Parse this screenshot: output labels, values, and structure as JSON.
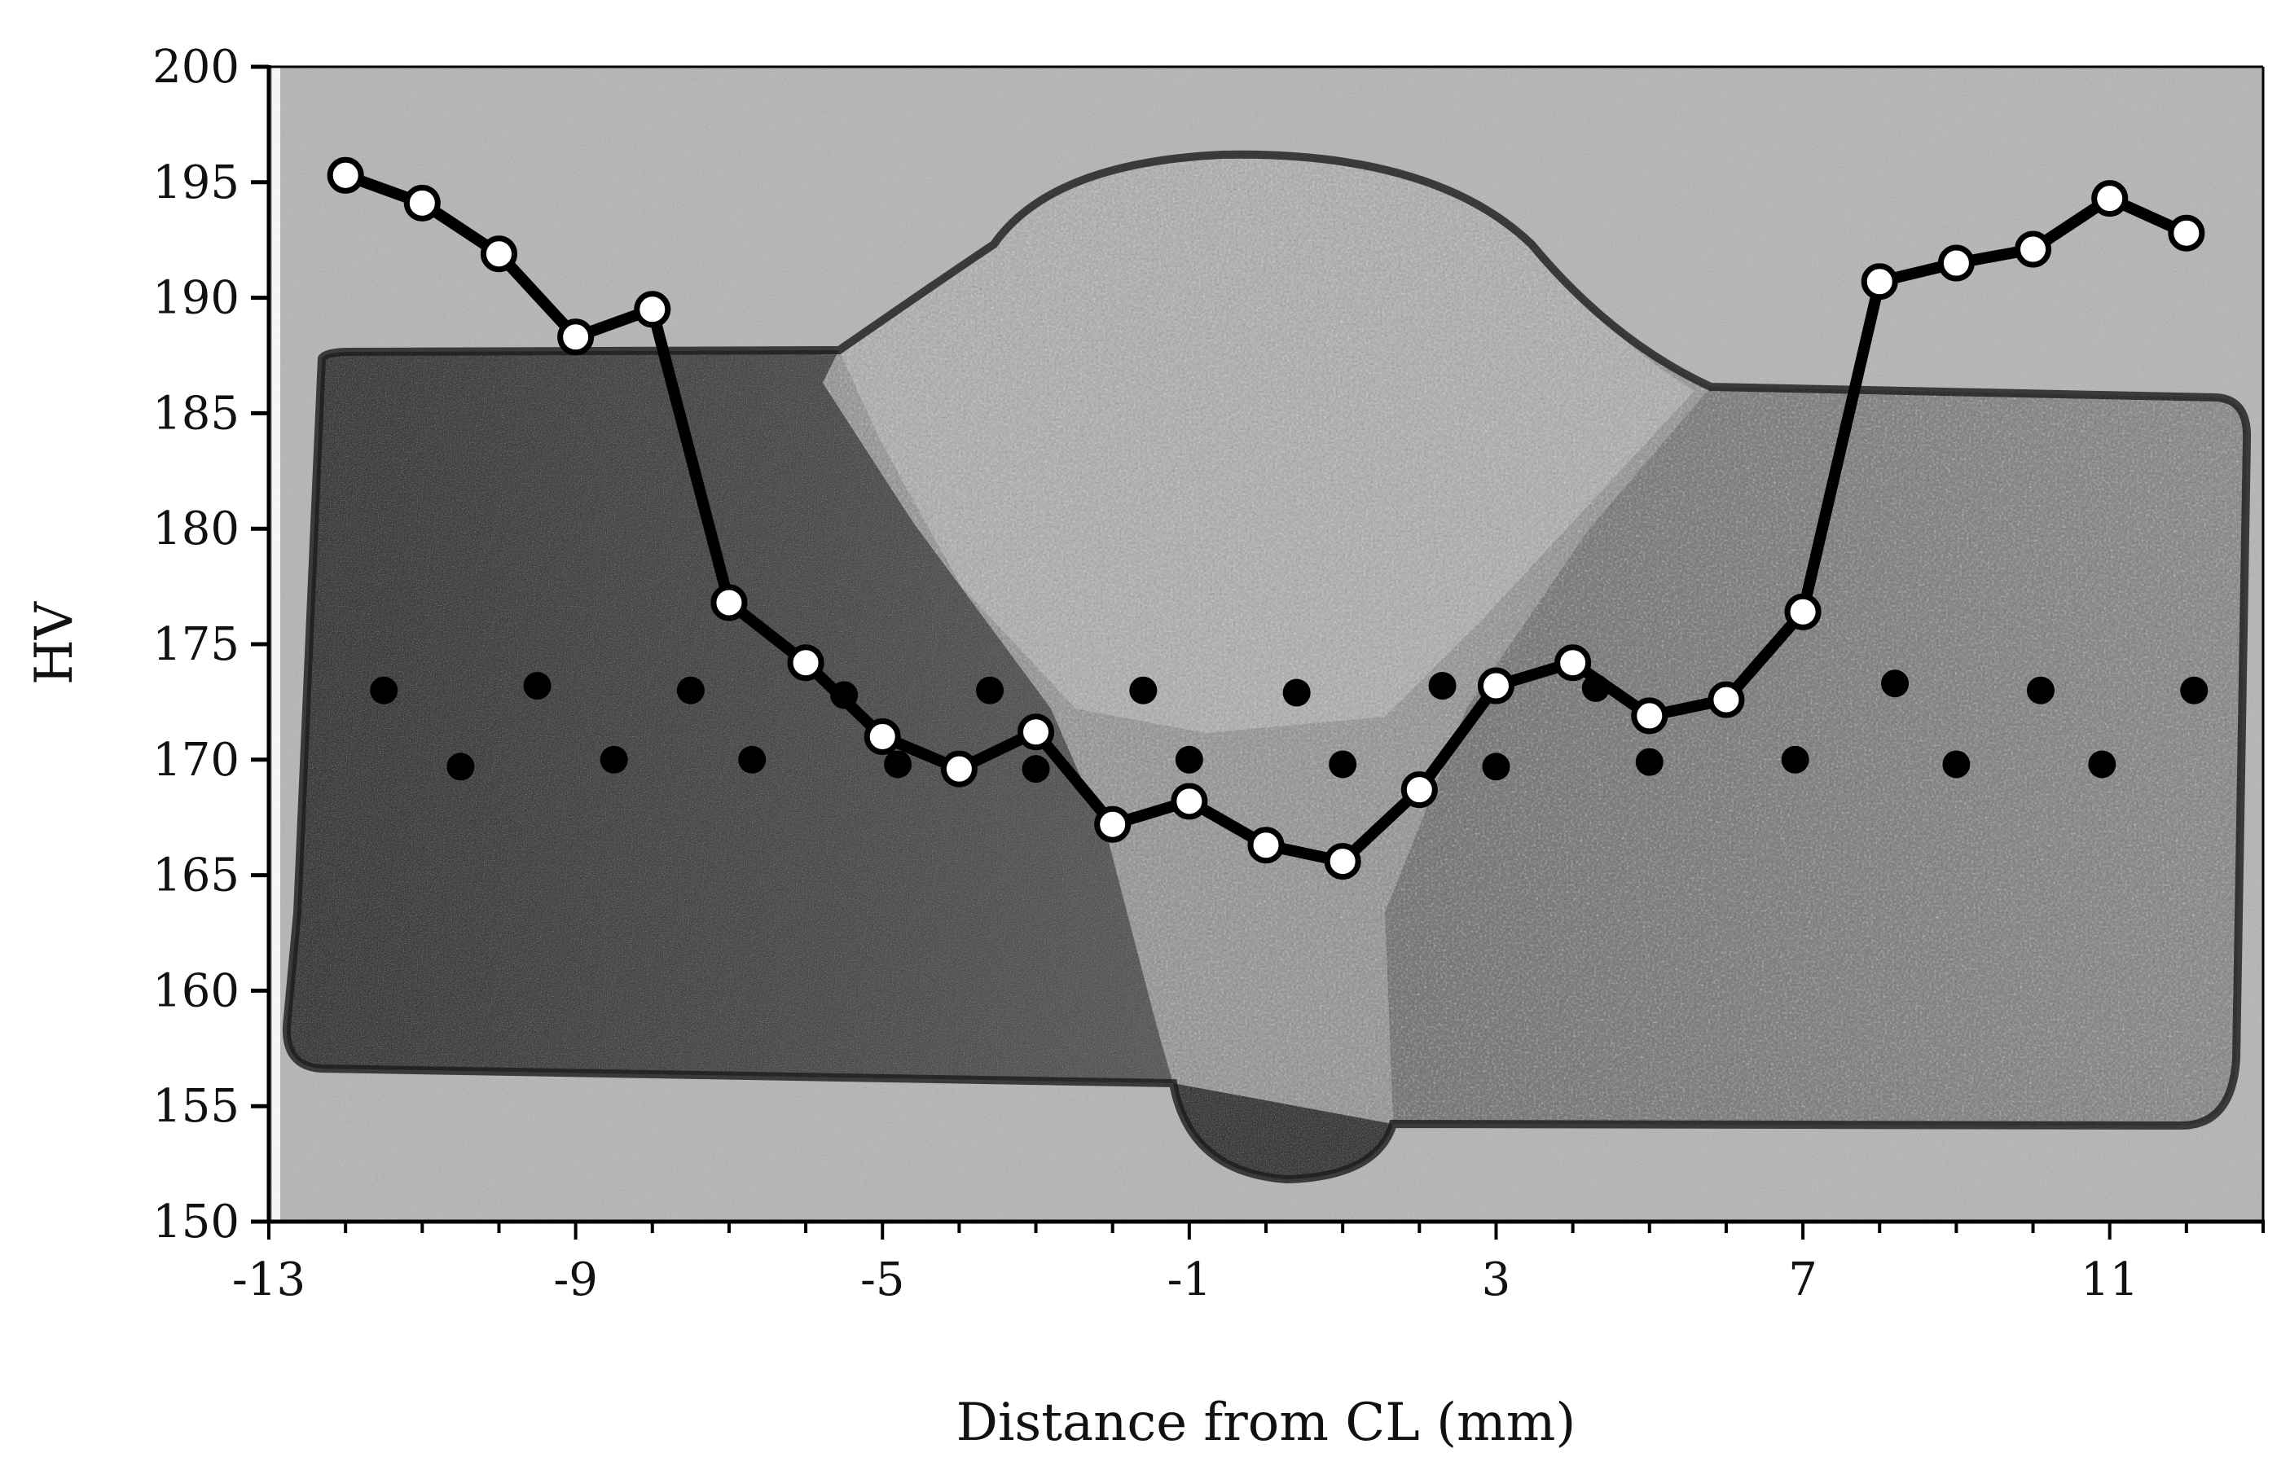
{
  "chart_data": {
    "type": "line",
    "xlabel": "Distance from CL (mm)",
    "ylabel": "HV",
    "xlim": [
      -13,
      13
    ],
    "ylim": [
      150,
      200
    ],
    "x_ticks": [
      -13,
      -9,
      -5,
      -1,
      3,
      7,
      11
    ],
    "y_ticks": [
      150,
      155,
      160,
      165,
      170,
      175,
      180,
      185,
      190,
      195,
      200
    ],
    "x_tick_labels": [
      "-13",
      "-9",
      "-5",
      "-1",
      "3",
      "7",
      "11"
    ],
    "y_tick_labels": [
      "150",
      "155",
      "160",
      "165",
      "170",
      "175",
      "180",
      "185",
      "190",
      "195",
      "200"
    ],
    "grid": false,
    "background": "grayscale micrograph of weld cross-section",
    "series": [
      {
        "style": "line with open circle markers",
        "color": "#000000",
        "marker_fill": "#ffffff",
        "points": [
          {
            "x": -12,
            "y": 195.3
          },
          {
            "x": -11,
            "y": 194.1
          },
          {
            "x": -10,
            "y": 191.9
          },
          {
            "x": -9,
            "y": 188.3
          },
          {
            "x": -8,
            "y": 189.5
          },
          {
            "x": -7,
            "y": 176.8
          },
          {
            "x": -6,
            "y": 174.2
          },
          {
            "x": -5,
            "y": 171.0
          },
          {
            "x": -4,
            "y": 169.6
          },
          {
            "x": -3,
            "y": 171.2
          },
          {
            "x": -2,
            "y": 167.2
          },
          {
            "x": -1,
            "y": 168.2
          },
          {
            "x": 0,
            "y": 166.3
          },
          {
            "x": 1,
            "y": 165.6
          },
          {
            "x": 2,
            "y": 168.7
          },
          {
            "x": 3,
            "y": 173.2
          },
          {
            "x": 4,
            "y": 174.2
          },
          {
            "x": 5,
            "y": 171.9
          },
          {
            "x": 6,
            "y": 172.6
          },
          {
            "x": 7,
            "y": 176.4
          },
          {
            "x": 8,
            "y": 190.7
          },
          {
            "x": 9,
            "y": 191.5
          },
          {
            "x": 10,
            "y": 192.1
          },
          {
            "x": 11,
            "y": 194.3
          },
          {
            "x": 12,
            "y": 192.8
          }
        ]
      }
    ],
    "indent_dots": {
      "style": "filled black dots (indentation marks in micrograph)",
      "color": "#000000",
      "points": [
        {
          "x": -11.5,
          "y": 173.0
        },
        {
          "x": -9.5,
          "y": 173.2
        },
        {
          "x": -7.5,
          "y": 173.0
        },
        {
          "x": -5.5,
          "y": 172.8
        },
        {
          "x": -3.6,
          "y": 173.0
        },
        {
          "x": -1.6,
          "y": 173.0
        },
        {
          "x": 0.4,
          "y": 172.9
        },
        {
          "x": 2.3,
          "y": 173.2
        },
        {
          "x": 4.3,
          "y": 173.1
        },
        {
          "x": 8.2,
          "y": 173.3
        },
        {
          "x": 10.1,
          "y": 173.0
        },
        {
          "x": 12.1,
          "y": 173.0
        },
        {
          "x": -10.5,
          "y": 169.7
        },
        {
          "x": -8.5,
          "y": 170.0
        },
        {
          "x": -6.7,
          "y": 170.0
        },
        {
          "x": -4.8,
          "y": 169.8
        },
        {
          "x": -3.0,
          "y": 169.6
        },
        {
          "x": -1.0,
          "y": 170.0
        },
        {
          "x": 1.0,
          "y": 169.8
        },
        {
          "x": 3.0,
          "y": 169.7
        },
        {
          "x": 5.0,
          "y": 169.9
        },
        {
          "x": 6.9,
          "y": 170.0
        },
        {
          "x": 9.0,
          "y": 169.8
        },
        {
          "x": 10.9,
          "y": 169.8
        }
      ]
    }
  }
}
